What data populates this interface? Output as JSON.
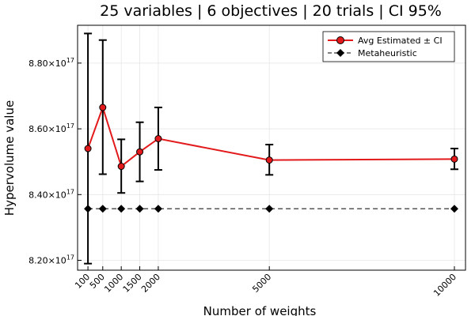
{
  "chart_data": {
    "type": "line",
    "title": "25 variables | 6 objectives | 20 trials | CI 95%",
    "xlabel": "Number of weights",
    "ylabel": "Hypervolume value",
    "x": [
      100,
      500,
      1000,
      1500,
      2000,
      5000,
      10000
    ],
    "x_tick_labels": [
      "100",
      "500",
      "1000",
      "1500",
      "2000",
      "5000",
      "10000"
    ],
    "xlim": [
      -180,
      10300
    ],
    "ylim": [
      8.17e+17,
      8.915e+17
    ],
    "y_ticks": [
      8.2e+17,
      8.4e+17,
      8.6e+17,
      8.8e+17
    ],
    "y_tick_mantissas": [
      "8.20",
      "8.40",
      "8.60",
      "8.80"
    ],
    "y_tick_base": "10",
    "y_tick_exponent": "17",
    "grid": true,
    "legend_position": "top-right",
    "series": [
      {
        "name": "Avg Estimated ± CI",
        "style": "solid",
        "color": "#e31a1c",
        "marker": "circle",
        "values": [
          8.54e+17,
          8.665e+17,
          8.486e+17,
          8.53e+17,
          8.57e+17,
          8.505e+17,
          8.508e+17
        ],
        "ci_lower": [
          8.19e+17,
          8.462e+17,
          8.405e+17,
          8.44e+17,
          8.475e+17,
          8.46e+17,
          8.477e+17
        ],
        "ci_upper": [
          8.89e+17,
          8.87e+17,
          8.568e+17,
          8.62e+17,
          8.665e+17,
          8.552e+17,
          8.54e+17
        ]
      },
      {
        "name": "Metaheuristic",
        "style": "dashed",
        "color": "#555555",
        "marker": "diamond",
        "values": [
          8.357e+17,
          8.357e+17,
          8.357e+17,
          8.357e+17,
          8.357e+17,
          8.357e+17,
          8.357e+17
        ]
      }
    ]
  }
}
